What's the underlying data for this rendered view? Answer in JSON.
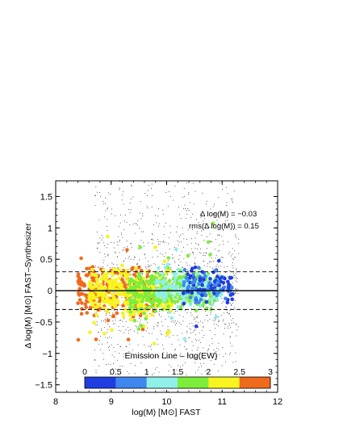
{
  "chart_data": {
    "type": "scatter",
    "title": "",
    "xlabel": "log(M) [M⊙] FAST",
    "ylabel": "Δ log(M) [M⊙] FAST–Synthesizer",
    "xlim": [
      8,
      12
    ],
    "ylim": [
      -1.62,
      1.75
    ],
    "x_ticks": [
      8,
      9,
      10,
      11,
      12
    ],
    "x_tick_labels": [
      "8",
      "9",
      "10",
      "11",
      "12"
    ],
    "y_ticks": [
      1.5,
      1,
      0.5,
      0,
      -0.5,
      -1,
      -1.5
    ],
    "y_tick_labels": [
      "1.5",
      "1",
      "0.5",
      "0",
      "−0.5",
      "−1",
      "−1.5"
    ],
    "grid": false,
    "reference_lines": [
      {
        "y": 0,
        "style": "solid"
      },
      {
        "y": 0.3,
        "style": "dashed"
      },
      {
        "y": -0.3,
        "style": "dashed"
      }
    ],
    "annotations": {
      "mean": "Δ log(M) = −0.03",
      "rms": "rms(Δ log(M)) =  0.15"
    },
    "colorbar": {
      "title": "Emission Line – log(EW)",
      "range": [
        0,
        3
      ],
      "tick_labels": [
        "0",
        "0.5",
        "1",
        "1.5",
        "2",
        "2.5",
        "3"
      ],
      "colors": [
        "#1f3de0",
        "#3f86ee",
        "#8ff0e8",
        "#7ded3c",
        "#f7f41f",
        "#ef6a1d"
      ]
    },
    "background_points": {
      "description": "small black dots, no emission-line information",
      "x_range": [
        8.7,
        11.3
      ],
      "y_spread": 1.6,
      "count": 1400
    },
    "series": [
      {
        "x_range": [
          8.4,
          9.8
        ],
        "y_center": 0.0,
        "y_spread": 0.18,
        "ew_range": [
          2.5,
          3.0
        ],
        "count": 260
      },
      {
        "x_range": [
          8.6,
          10.1
        ],
        "y_center": -0.02,
        "y_spread": 0.16,
        "ew_range": [
          2.0,
          2.5
        ],
        "count": 380
      },
      {
        "x_range": [
          9.3,
          10.9
        ],
        "y_center": 0.02,
        "y_spread": 0.14,
        "ew_range": [
          1.5,
          2.0
        ],
        "count": 320
      },
      {
        "x_range": [
          9.8,
          11.0
        ],
        "y_center": 0.04,
        "y_spread": 0.13,
        "ew_range": [
          1.0,
          1.5
        ],
        "count": 170
      },
      {
        "x_range": [
          10.3,
          11.2
        ],
        "y_center": 0.08,
        "y_spread": 0.12,
        "ew_range": [
          0.0,
          1.0
        ],
        "count": 130
      }
    ]
  }
}
